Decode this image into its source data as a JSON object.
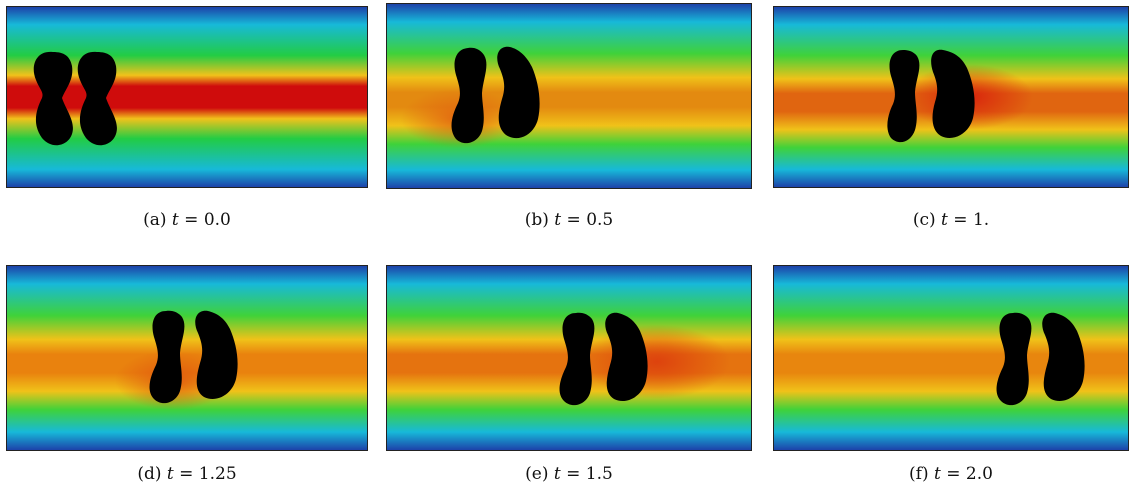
{
  "figure": {
    "panels": [
      {
        "label": "(a)",
        "var": "t",
        "eq": "=",
        "value": "0.0",
        "time": 0.0,
        "shape": "peanut",
        "palette": {
          "outer": "#1d3fa8",
          "edge": "#17b9d9",
          "mid": "#22cc44",
          "inner": "#f1c21b",
          "core": "#cf0c0c"
        }
      },
      {
        "label": "(b)",
        "var": "t",
        "eq": "=",
        "value": "0.5",
        "time": 0.5,
        "shape": "bean",
        "palette": {
          "outer": "#1d3fa8",
          "edge": "#17b9d9",
          "mid": "#3fd23a",
          "inner": "#f0c219",
          "core": "#e38a10"
        }
      },
      {
        "label": "(c)",
        "var": "t",
        "eq": "=",
        "value": "1.",
        "time": 1.0,
        "shape": "bean",
        "palette": {
          "outer": "#1d3fa8",
          "edge": "#17b9d9",
          "mid": "#3fd23a",
          "inner": "#f0c219",
          "core": "#e06510"
        }
      },
      {
        "label": "(d)",
        "var": "t",
        "eq": "=",
        "value": "1.25",
        "time": 1.25,
        "shape": "bean",
        "palette": {
          "outer": "#1d3fa8",
          "edge": "#17b9d9",
          "mid": "#3fd23a",
          "inner": "#f0c219",
          "core": "#e9820e"
        }
      },
      {
        "label": "(e)",
        "var": "t",
        "eq": "=",
        "value": "1.5",
        "time": 1.5,
        "shape": "bean",
        "palette": {
          "outer": "#1d3fa8",
          "edge": "#17b9d9",
          "mid": "#3fd23a",
          "inner": "#f0c219",
          "core": "#e5730f"
        }
      },
      {
        "label": "(f)",
        "var": "t",
        "eq": "=",
        "value": "2.0",
        "time": 2.0,
        "shape": "bean",
        "palette": {
          "outer": "#1d3fa8",
          "edge": "#17b9d9",
          "mid": "#3fd23a",
          "inner": "#f0c219",
          "core": "#e8860e"
        }
      }
    ],
    "body_color": "#000000"
  }
}
